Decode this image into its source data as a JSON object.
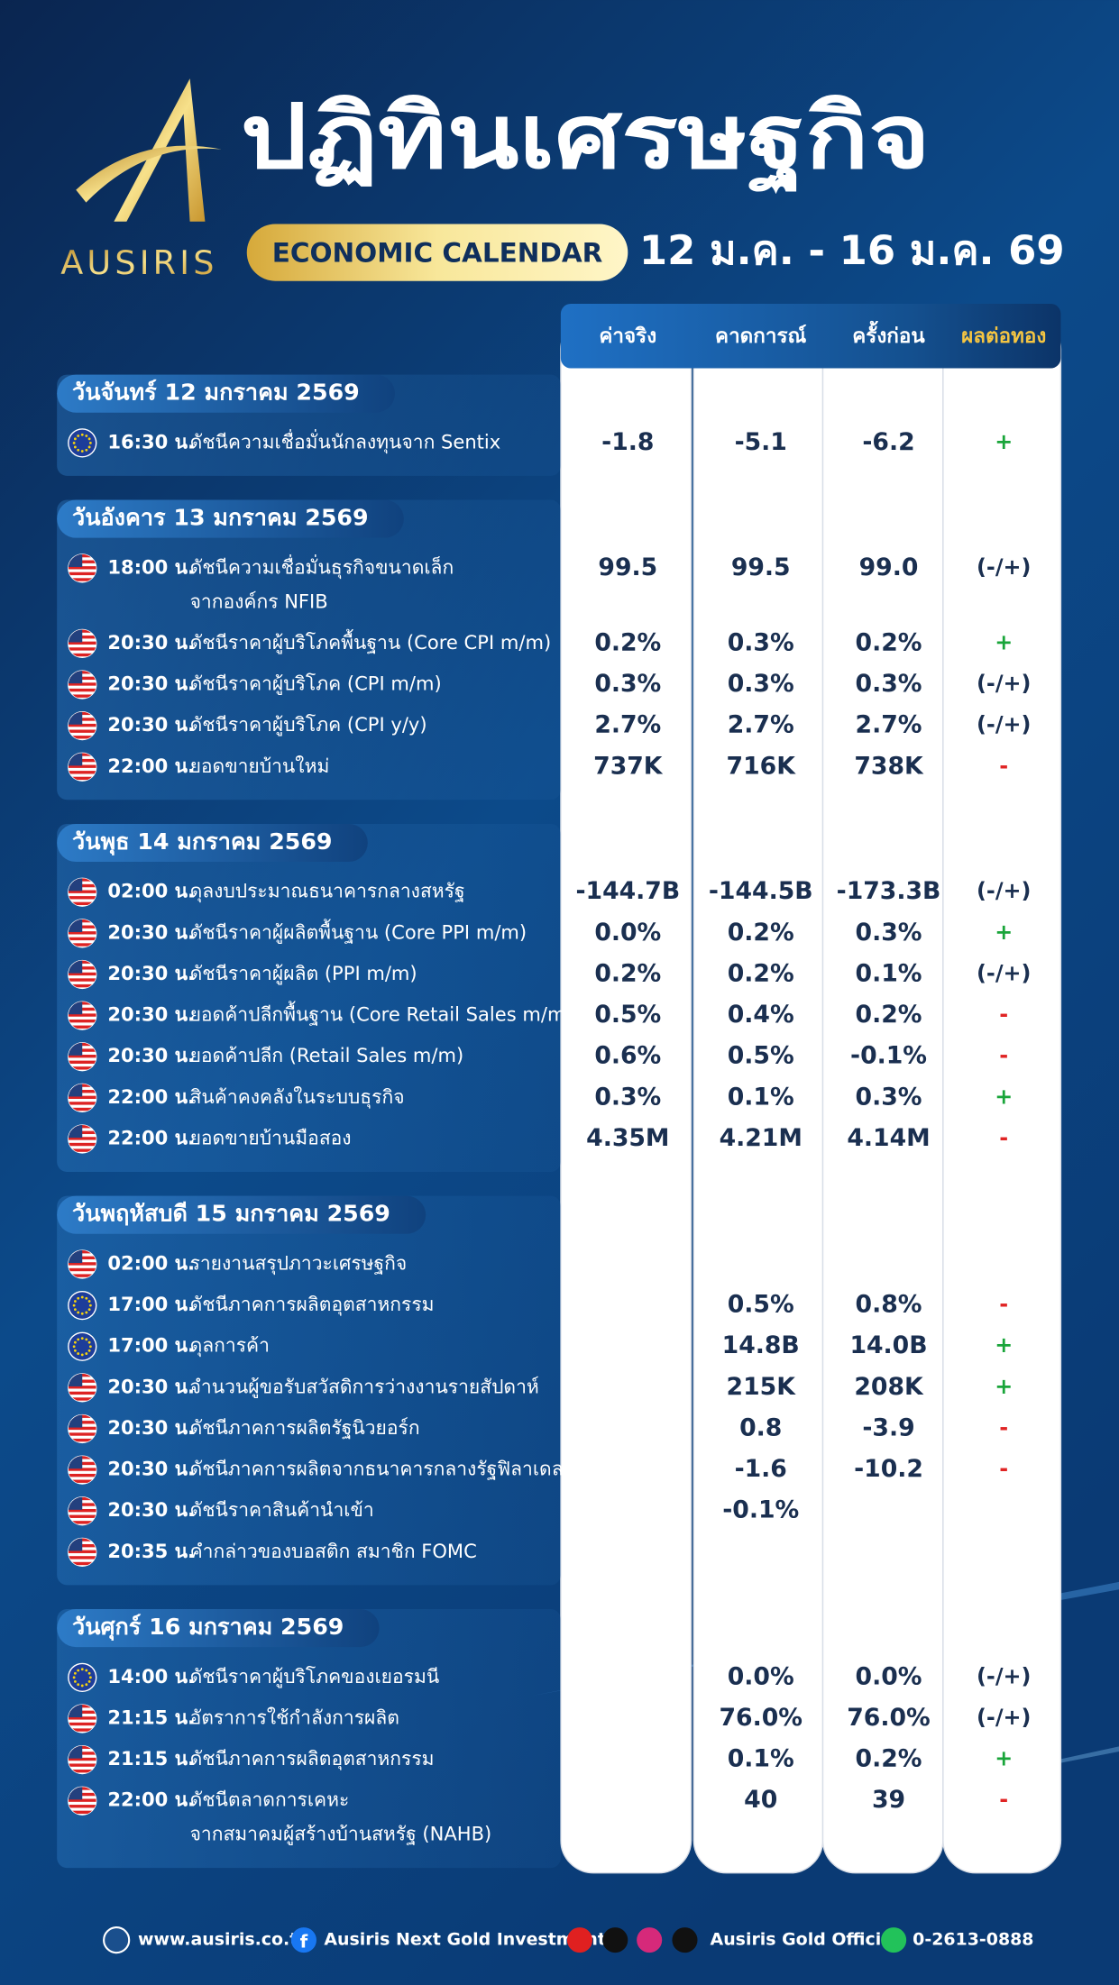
{
  "header": {
    "brand": "AUSIRIS",
    "title": "ปฏิทินเศรษฐกิจ",
    "subtitle": "ECONOMIC CALENDAR",
    "date_range": "12 ม.ค. - 16 ม.ค. 69"
  },
  "columns": [
    "ค่าจริง",
    "คาดการณ์",
    "ครั้งก่อน",
    "ผลต่อทอง"
  ],
  "days": [
    {
      "title": "วันจันทร์ 12 มกราคม 2569",
      "events": [
        {
          "flag": "eu",
          "time": "16:30 น.",
          "name": [
            "ดัชนีความเชื่อมั่นนักลงทุนจาก Sentix"
          ],
          "actual": "-1.8",
          "forecast": "-5.1",
          "previous": "-6.2",
          "effect": "+"
        }
      ]
    },
    {
      "title": "วันอังคาร 13 มกราคม 2569",
      "events": [
        {
          "flag": "us",
          "time": "18:00 น.",
          "name": [
            "ดัชนีความเชื่อมั่นธุรกิจขนาดเล็ก",
            "จากองค์กร NFIB"
          ],
          "actual": "99.5",
          "forecast": "99.5",
          "previous": "99.0",
          "effect": "(-/+)"
        },
        {
          "flag": "us",
          "time": "20:30 น.",
          "name": [
            "ดัชนีราคาผู้บริโภคพื้นฐาน (Core CPI m/m)"
          ],
          "actual": "0.2%",
          "forecast": "0.3%",
          "previous": "0.2%",
          "effect": "+"
        },
        {
          "flag": "us",
          "time": "20:30 น.",
          "name": [
            "ดัชนีราคาผู้บริโภค (CPI m/m)"
          ],
          "actual": "0.3%",
          "forecast": "0.3%",
          "previous": "0.3%",
          "effect": "(-/+)"
        },
        {
          "flag": "us",
          "time": "20:30 น.",
          "name": [
            "ดัชนีราคาผู้บริโภค (CPI y/y)"
          ],
          "actual": "2.7%",
          "forecast": "2.7%",
          "previous": "2.7%",
          "effect": "(-/+)"
        },
        {
          "flag": "us",
          "time": "22:00 น.",
          "name": [
            "ยอดขายบ้านใหม่"
          ],
          "actual": "737K",
          "forecast": "716K",
          "previous": "738K",
          "effect": "-"
        }
      ]
    },
    {
      "title": "วันพุธ 14 มกราคม 2569",
      "events": [
        {
          "flag": "us",
          "time": "02:00 น.",
          "name": [
            "ดุลงบประมาณธนาคารกลางสหรัฐ"
          ],
          "actual": "-144.7B",
          "forecast": "-144.5B",
          "previous": "-173.3B",
          "effect": "(-/+)"
        },
        {
          "flag": "us",
          "time": "20:30 น.",
          "name": [
            "ดัชนีราคาผู้ผลิตพื้นฐาน (Core PPI m/m)"
          ],
          "actual": "0.0%",
          "forecast": "0.2%",
          "previous": "0.3%",
          "effect": "+"
        },
        {
          "flag": "us",
          "time": "20:30 น.",
          "name": [
            "ดัชนีราคาผู้ผลิต (PPI m/m)"
          ],
          "actual": "0.2%",
          "forecast": "0.2%",
          "previous": "0.1%",
          "effect": "(-/+)"
        },
        {
          "flag": "us",
          "time": "20:30 น.",
          "name": [
            "ยอดค้าปลีกพื้นฐาน (Core Retail Sales m/m)"
          ],
          "actual": "0.5%",
          "forecast": "0.4%",
          "previous": "0.2%",
          "effect": "-"
        },
        {
          "flag": "us",
          "time": "20:30 น.",
          "name": [
            "ยอดค้าปลีก (Retail Sales m/m)"
          ],
          "actual": "0.6%",
          "forecast": "0.5%",
          "previous": "-0.1%",
          "effect": "-"
        },
        {
          "flag": "us",
          "time": "22:00 น.",
          "name": [
            "สินค้าคงคลังในระบบธุรกิจ"
          ],
          "actual": "0.3%",
          "forecast": "0.1%",
          "previous": "0.3%",
          "effect": "+"
        },
        {
          "flag": "us",
          "time": "22:00 น.",
          "name": [
            "ยอดขายบ้านมือสอง"
          ],
          "actual": "4.35M",
          "forecast": "4.21M",
          "previous": "4.14M",
          "effect": "-"
        }
      ]
    },
    {
      "title": "วันพฤหัสบดี 15 มกราคม 2569",
      "events": [
        {
          "flag": "us",
          "time": "02:00 น.",
          "name": [
            "รายงานสรุปภาวะเศรษฐกิจ"
          ]
        },
        {
          "flag": "eu",
          "time": "17:00 น.",
          "name": [
            "ดัชนีภาคการผลิตอุตสาหกรรม"
          ],
          "forecast": "0.5%",
          "previous": "0.8%",
          "effect": "-"
        },
        {
          "flag": "eu",
          "time": "17:00 น.",
          "name": [
            "ดุลการค้า"
          ],
          "forecast": "14.8B",
          "previous": "14.0B",
          "effect": "+"
        },
        {
          "flag": "us",
          "time": "20:30 น.",
          "name": [
            "จำนวนผู้ขอรับสวัสดิการว่างงานรายสัปดาห์"
          ],
          "forecast": "215K",
          "previous": "208K",
          "effect": "+"
        },
        {
          "flag": "us",
          "time": "20:30 น.",
          "name": [
            "ดัชนีภาคการผลิตรัฐนิวยอร์ก"
          ],
          "forecast": "0.8",
          "previous": "-3.9",
          "effect": "-"
        },
        {
          "flag": "us",
          "time": "20:30 น.",
          "name": [
            "ดัชนีภาคการผลิตจากธนาคารกลางรัฐฟิลาเดลเฟีย"
          ],
          "forecast": "-1.6",
          "previous": "-10.2",
          "effect": "-"
        },
        {
          "flag": "us",
          "time": "20:30 น.",
          "name": [
            "ดัชนีราคาสินค้านำเข้า"
          ],
          "forecast": "-0.1%"
        },
        {
          "flag": "us",
          "time": "20:35 น.",
          "name": [
            "คำกล่าวของบอสติก สมาชิก FOMC"
          ]
        }
      ]
    },
    {
      "title": "วันศุกร์ 16 มกราคม 2569",
      "events": [
        {
          "flag": "eu",
          "time": "14:00 น.",
          "name": [
            "ดัชนีราคาผู้บริโภคของเยอรมนี"
          ],
          "forecast": "0.0%",
          "previous": "0.0%",
          "effect": "(-/+)"
        },
        {
          "flag": "us",
          "time": "21:15 น.",
          "name": [
            "อัตราการใช้กำลังการผลิต"
          ],
          "forecast": "76.0%",
          "previous": "76.0%",
          "effect": "(-/+)"
        },
        {
          "flag": "us",
          "time": "21:15 น.",
          "name": [
            "ดัชนีภาคการผลิตอุตสาหกรรม"
          ],
          "forecast": "0.1%",
          "previous": "0.2%",
          "effect": "+"
        },
        {
          "flag": "us",
          "time": "22:00 น.",
          "name": [
            "ดัชนีตลาดการเคหะ",
            "จากสมาคมผู้สร้างบ้านสหรัฐ (NAHB)"
          ],
          "forecast": "40",
          "previous": "39",
          "effect": "-"
        }
      ]
    }
  ],
  "footer": {
    "website": "www.ausiris.co.th",
    "facebook": "Ausiris Next Gold Investment",
    "social": "Ausiris Gold Official",
    "phone": "0-2613-0888"
  }
}
